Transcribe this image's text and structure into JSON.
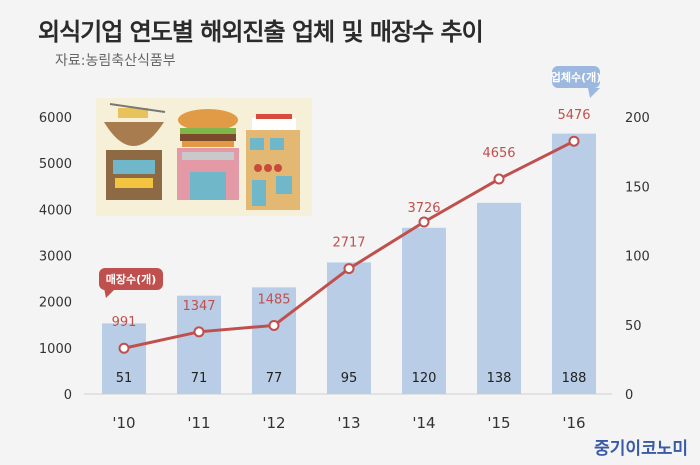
{
  "title": "외식기업 연도별 해외진출 업체 및 매장수 추이",
  "source": "자료:농림축산식품부",
  "logo": "중기이코노미",
  "chart_data": {
    "type": "bar",
    "categories": [
      "'10",
      "'11",
      "'12",
      "'13",
      "'14",
      "'15",
      "'16"
    ],
    "series": [
      {
        "name": "업체수(개)",
        "type": "bar",
        "axis": "right",
        "values": [
          51,
          71,
          77,
          95,
          120,
          138,
          188
        ]
      },
      {
        "name": "매장수(개)",
        "type": "line",
        "axis": "left",
        "values": [
          991,
          1347,
          1485,
          2717,
          3726,
          4656,
          5476
        ],
        "labels": [
          "991",
          "1347",
          "1485",
          "2717",
          "",
          "4656",
          "5476"
        ]
      }
    ],
    "left_axis": {
      "ticks": [
        "6000",
        "5000",
        "4000",
        "3000",
        "2000",
        "1000",
        "0"
      ],
      "ylim": [
        0,
        6000
      ]
    },
    "right_axis": {
      "ticks": [
        "200",
        "150",
        "100",
        "50",
        "0"
      ],
      "ylim": [
        0,
        200
      ]
    },
    "x_extra_labels": [
      "3726"
    ],
    "colors": {
      "bar": "#b9cde6",
      "line": "#c0504d",
      "bar_callout": "#9db8de",
      "line_callout": "#c0504d"
    }
  }
}
